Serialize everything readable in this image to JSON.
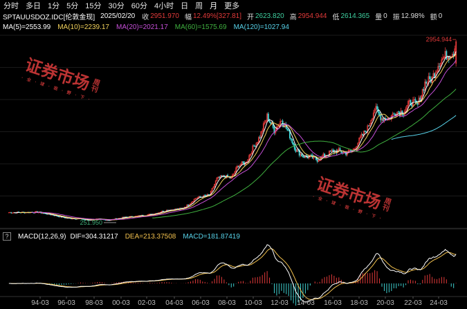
{
  "toolbar": {
    "periods": [
      "分时",
      "多日",
      "1分",
      "5分",
      "15分",
      "30分",
      "60分",
      "4小时",
      "日",
      "周",
      "月",
      "更多"
    ]
  },
  "quote": {
    "symbol": "SPTAUUSDOZ.IDC[伦敦金现]",
    "date": "2025/02/20",
    "close_label": "收",
    "close": "2951.970",
    "change_label": "幅",
    "change": "12.49%[327.81]",
    "open_label": "开",
    "open": "2623.820",
    "high_label": "高",
    "high": "2954.944",
    "low_label": "低",
    "low": "2614.365",
    "volume_label": "量",
    "volume": "0",
    "amplitude_label": "振",
    "amplitude": "12.98%",
    "amount_label": "额",
    "amount": "0"
  },
  "ma": {
    "ma5": "MA(5)=2553.99",
    "ma10": "MA(10)=2239.17",
    "ma20": "MA(20)=2021.17",
    "ma60": "MA(60)=1575.69",
    "ma120": "MA(120)=1027.94"
  },
  "colors": {
    "up": "#e23a3a",
    "down": "#3fd0d0",
    "ma5": "#ffffff",
    "ma10": "#f2d25c",
    "ma20": "#c64fd8",
    "ma60": "#3fb03f",
    "ma120": "#58d3ea",
    "dif": "#ffffff",
    "dea": "#f2c14e"
  },
  "markers": {
    "max_label": "2954.944",
    "min_label": "251.950"
  },
  "macd": {
    "question": "?",
    "title": "MACD(12,26,9)",
    "dif": "DIF=304.31217",
    "dea": "DEA=213.37508",
    "macd": "MACD=181.87419"
  },
  "xaxis": [
    "94-03",
    "96-03",
    "98-03",
    "00-03",
    "02-03",
    "04-03",
    "06-03",
    "08-03",
    "10-03",
    "12-03",
    "14-03",
    "16-03",
    "18-03",
    "20-03",
    "22-03",
    "24-03"
  ],
  "watermark": {
    "main": "证券市场",
    "side": "周刊",
    "sub": "· 全 · 球 · 视 · 野 · 下 ·"
  },
  "chart_data": [
    {
      "type": "candlestick",
      "title": "SPTAUUSDOZ.IDC[伦敦金现]",
      "x": [
        "94-03",
        "96-03",
        "98-03",
        "00-03",
        "02-03",
        "04-03",
        "06-03",
        "08-03",
        "10-03",
        "12-03",
        "14-03",
        "16-03",
        "18-03",
        "20-03",
        "22-03",
        "24-03",
        "25-02"
      ],
      "close_approx": [
        380,
        390,
        300,
        280,
        300,
        410,
        560,
        900,
        1200,
        1650,
        1330,
        1200,
        1300,
        1600,
        1800,
        2200,
        2952
      ],
      "max_label": 2954.944,
      "min_label": 251.95,
      "series_lines": [
        "MA(5)",
        "MA(10)",
        "MA(20)",
        "MA(60)",
        "MA(120)"
      ]
    },
    {
      "type": "line",
      "title": "MACD(12,26,9)",
      "series": [
        {
          "name": "DIF",
          "last": 304.31217
        },
        {
          "name": "DEA",
          "last": 213.37508
        },
        {
          "name": "MACD",
          "last": 181.87419
        }
      ]
    }
  ]
}
